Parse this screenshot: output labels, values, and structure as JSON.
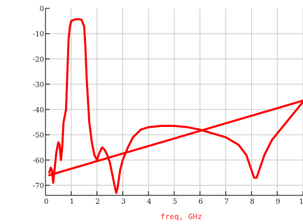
{
  "chart_data": {
    "type": "line",
    "title": "",
    "xlabel": "freq, GHz",
    "ylabel": "",
    "xlim": [
      0,
      10
    ],
    "ylim": [
      -74,
      0
    ],
    "grid": true,
    "legend": "none",
    "colors": {
      "series": "#ff0000",
      "grid": "#c8c8c8",
      "axis": "#000000",
      "xlabel": "#ff3030"
    },
    "x_ticks": [
      0,
      1,
      2,
      3,
      4,
      5,
      6,
      7,
      8,
      9,
      10
    ],
    "x_tick_labels": [
      "0",
      "1",
      "2",
      "3",
      "4",
      "5",
      "6",
      "7",
      "8",
      "9",
      "10"
    ],
    "y_ticks": [
      0,
      -10,
      -20,
      -30,
      -40,
      -50,
      -60,
      -70
    ],
    "y_tick_labels": [
      "0",
      "-10",
      "-20",
      "-30",
      "-40",
      "-50",
      "-60",
      "-70"
    ],
    "series": [
      {
        "points": [
          [
            0.15,
            -65
          ],
          [
            0.2,
            -63
          ],
          [
            0.25,
            -64
          ],
          [
            0.3,
            -69
          ],
          [
            0.35,
            -64
          ],
          [
            0.42,
            -57
          ],
          [
            0.5,
            -53
          ],
          [
            0.55,
            -54
          ],
          [
            0.6,
            -60
          ],
          [
            0.65,
            -55
          ],
          [
            0.7,
            -45
          ],
          [
            0.8,
            -40
          ],
          [
            0.85,
            -25
          ],
          [
            0.9,
            -12
          ],
          [
            0.95,
            -7
          ],
          [
            1.0,
            -5
          ],
          [
            1.1,
            -4.5
          ],
          [
            1.2,
            -4.3
          ],
          [
            1.3,
            -4.3
          ],
          [
            1.4,
            -4.5
          ],
          [
            1.5,
            -7
          ],
          [
            1.55,
            -15
          ],
          [
            1.6,
            -28
          ],
          [
            1.7,
            -45
          ],
          [
            1.8,
            -53
          ],
          [
            1.9,
            -58
          ],
          [
            2.0,
            -60
          ],
          [
            2.1,
            -57
          ],
          [
            2.2,
            -55
          ],
          [
            2.3,
            -56
          ],
          [
            2.4,
            -58
          ],
          [
            2.5,
            -61
          ],
          [
            2.6,
            -66
          ],
          [
            2.7,
            -71
          ],
          [
            2.75,
            -73
          ],
          [
            2.8,
            -71
          ],
          [
            2.9,
            -64
          ],
          [
            3.0,
            -60
          ],
          [
            3.2,
            -55
          ],
          [
            3.4,
            -51
          ],
          [
            3.7,
            -48
          ],
          [
            4.0,
            -47
          ],
          [
            4.5,
            -46.5
          ],
          [
            5.0,
            -46.5
          ],
          [
            5.5,
            -47
          ],
          [
            6.0,
            -48
          ],
          [
            6.5,
            -49.5
          ],
          [
            7.0,
            -51
          ],
          [
            7.5,
            -54
          ],
          [
            7.8,
            -58
          ],
          [
            8.0,
            -64
          ],
          [
            8.1,
            -67
          ],
          [
            8.2,
            -67
          ],
          [
            8.3,
            -64
          ],
          [
            8.5,
            -58
          ],
          [
            8.8,
            -52
          ],
          [
            9.2,
            -47
          ],
          [
            9.6,
            -42
          ],
          [
            10.0,
            -37
          ]
        ]
      },
      {
        "points": [
          [
            0.15,
            -66
          ],
          [
            10.0,
            -36.5
          ]
        ]
      }
    ]
  }
}
